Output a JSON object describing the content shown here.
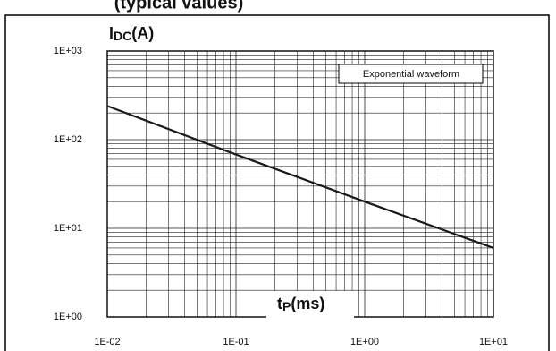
{
  "chart_data": {
    "type": "line",
    "title": "(typical values)",
    "y_label": {
      "main": "I",
      "sub": "DC",
      "unit": "(A)"
    },
    "x_label": {
      "main": "t",
      "sub": "P",
      "unit": "(ms)"
    },
    "annotation": "Exponential waveform",
    "x": [
      0.01,
      0.1,
      1,
      10
    ],
    "series": [
      {
        "name": "Exponential waveform",
        "color": "#1a1a1a",
        "values": [
          240,
          68,
          20,
          6
        ]
      }
    ],
    "xscale": "log",
    "yscale": "log",
    "xlim": [
      0.01,
      10
    ],
    "ylim": [
      1,
      1000
    ],
    "xticks": [
      {
        "value": 0.01,
        "label": "1E-02"
      },
      {
        "value": 0.1,
        "label": "1E-01"
      },
      {
        "value": 1,
        "label": "1E+00"
      },
      {
        "value": 10,
        "label": "1E+01"
      }
    ],
    "yticks": [
      {
        "value": 1,
        "label": "1E+00"
      },
      {
        "value": 10,
        "label": "1E+01"
      },
      {
        "value": 100,
        "label": "1E+02"
      },
      {
        "value": 1000,
        "label": "1E+03"
      }
    ],
    "grid": true,
    "minor_grid": true
  }
}
